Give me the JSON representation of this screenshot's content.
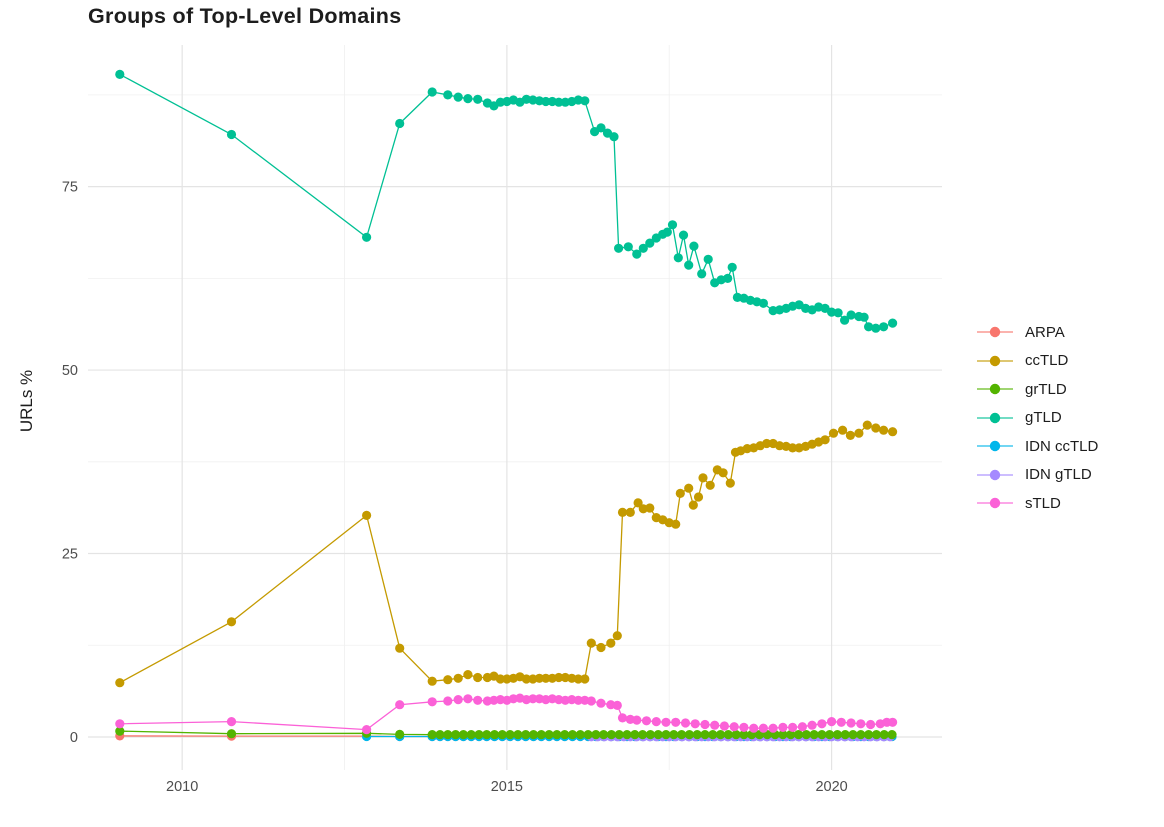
{
  "title": "Groups of Top-Level Domains",
  "ylabel": "URLs %",
  "axes": {
    "x": {
      "ticks": [
        2010,
        2015,
        2020
      ],
      "minor": [
        2012.5,
        2017.5
      ],
      "lim": [
        2008.55,
        2021.7
      ]
    },
    "y": {
      "ticks": [
        0,
        25,
        50,
        75
      ],
      "minor": [
        12.5,
        37.5,
        62.5,
        87.5
      ],
      "lim": [
        -4.5,
        94.3
      ]
    }
  },
  "grid_color_major": "#e4e4e4",
  "grid_color_minor": "#f0f0f0",
  "tick_label_color": "#4d4d4d",
  "legend": {
    "position": "right",
    "items": [
      {
        "label": "ARPA",
        "color": "#F8766D"
      },
      {
        "label": "ccTLD",
        "color": "#C49A00"
      },
      {
        "label": "grTLD",
        "color": "#53B400"
      },
      {
        "label": "gTLD",
        "color": "#00C094"
      },
      {
        "label": "IDN ccTLD",
        "color": "#00B6EB"
      },
      {
        "label": "IDN gTLD",
        "color": "#A58AFF"
      },
      {
        "label": "sTLD",
        "color": "#FB61D7"
      }
    ]
  },
  "chart_data": {
    "type": "line",
    "mark": "line+point",
    "title": "Groups of Top-Level Domains",
    "xlabel": "",
    "ylabel": "URLs %",
    "xlim": [
      2008.55,
      2021.7
    ],
    "ylim": [
      -4.5,
      94.3
    ],
    "grid": true,
    "legend_position": "right",
    "series": [
      {
        "name": "ARPA",
        "color": "#F8766D",
        "points": [
          [
            2009.04,
            0.15
          ],
          [
            2010.76,
            0.12
          ],
          [
            2012.84,
            0.12
          ],
          [
            2013.35,
            0.07
          ]
        ],
        "flat": {
          "from": 2013.85,
          "to": 2020.95,
          "step": 0.12,
          "value": 0.07
        }
      },
      {
        "name": "ccTLD",
        "color": "#C49A00",
        "points": [
          [
            2009.04,
            7.4
          ],
          [
            2010.76,
            15.7
          ],
          [
            2012.84,
            30.2
          ],
          [
            2013.35,
            12.1
          ],
          [
            2013.85,
            7.6
          ],
          [
            2014.09,
            7.8
          ],
          [
            2014.25,
            8.0
          ],
          [
            2014.4,
            8.5
          ],
          [
            2014.55,
            8.1
          ],
          [
            2014.7,
            8.1
          ],
          [
            2014.8,
            8.3
          ],
          [
            2014.9,
            7.9
          ],
          [
            2015.0,
            7.9
          ],
          [
            2015.1,
            8.0
          ],
          [
            2015.2,
            8.2
          ],
          [
            2015.3,
            7.9
          ],
          [
            2015.4,
            7.9
          ],
          [
            2015.5,
            8.0
          ],
          [
            2015.6,
            8.0
          ],
          [
            2015.7,
            8.0
          ],
          [
            2015.8,
            8.1
          ],
          [
            2015.9,
            8.1
          ],
          [
            2016.0,
            8.0
          ],
          [
            2016.1,
            7.9
          ],
          [
            2016.2,
            7.9
          ],
          [
            2016.3,
            12.8
          ],
          [
            2016.45,
            12.2
          ],
          [
            2016.6,
            12.8
          ],
          [
            2016.7,
            13.8
          ],
          [
            2016.78,
            30.6
          ],
          [
            2016.9,
            30.6
          ],
          [
            2017.02,
            31.9
          ],
          [
            2017.1,
            31.1
          ],
          [
            2017.2,
            31.2
          ],
          [
            2017.3,
            29.9
          ],
          [
            2017.4,
            29.6
          ],
          [
            2017.5,
            29.2
          ],
          [
            2017.6,
            29.0
          ],
          [
            2017.67,
            33.2
          ],
          [
            2017.8,
            33.9
          ],
          [
            2017.87,
            31.6
          ],
          [
            2017.95,
            32.7
          ],
          [
            2018.02,
            35.3
          ],
          [
            2018.13,
            34.3
          ],
          [
            2018.24,
            36.4
          ],
          [
            2018.33,
            36.0
          ],
          [
            2018.44,
            34.6
          ],
          [
            2018.52,
            38.8
          ],
          [
            2018.6,
            39.0
          ],
          [
            2018.7,
            39.3
          ],
          [
            2018.8,
            39.4
          ],
          [
            2018.9,
            39.7
          ],
          [
            2019.0,
            40.0
          ],
          [
            2019.1,
            40.0
          ],
          [
            2019.2,
            39.7
          ],
          [
            2019.3,
            39.6
          ],
          [
            2019.4,
            39.4
          ],
          [
            2019.5,
            39.4
          ],
          [
            2019.6,
            39.6
          ],
          [
            2019.7,
            39.9
          ],
          [
            2019.8,
            40.2
          ],
          [
            2019.9,
            40.5
          ],
          [
            2020.03,
            41.4
          ],
          [
            2020.17,
            41.8
          ],
          [
            2020.29,
            41.1
          ],
          [
            2020.42,
            41.4
          ],
          [
            2020.55,
            42.5
          ],
          [
            2020.68,
            42.1
          ],
          [
            2020.8,
            41.8
          ],
          [
            2020.94,
            41.6
          ]
        ]
      },
      {
        "name": "grTLD",
        "color": "#53B400",
        "points": [
          [
            2009.04,
            0.8
          ],
          [
            2010.76,
            0.45
          ],
          [
            2012.84,
            0.5
          ],
          [
            2013.35,
            0.35
          ]
        ],
        "flat": {
          "from": 2013.85,
          "to": 2020.95,
          "step": 0.12,
          "value": 0.33
        }
      },
      {
        "name": "gTLD",
        "color": "#00C094",
        "points": [
          [
            2009.04,
            90.3
          ],
          [
            2010.76,
            82.1
          ],
          [
            2012.84,
            68.1
          ],
          [
            2013.35,
            83.6
          ],
          [
            2013.85,
            87.9
          ],
          [
            2014.09,
            87.5
          ],
          [
            2014.25,
            87.2
          ],
          [
            2014.4,
            87.0
          ],
          [
            2014.55,
            86.9
          ],
          [
            2014.7,
            86.4
          ],
          [
            2014.8,
            86.0
          ],
          [
            2014.9,
            86.5
          ],
          [
            2015.0,
            86.6
          ],
          [
            2015.1,
            86.8
          ],
          [
            2015.2,
            86.5
          ],
          [
            2015.3,
            86.9
          ],
          [
            2015.4,
            86.8
          ],
          [
            2015.5,
            86.7
          ],
          [
            2015.6,
            86.6
          ],
          [
            2015.7,
            86.6
          ],
          [
            2015.8,
            86.5
          ],
          [
            2015.9,
            86.5
          ],
          [
            2016.0,
            86.6
          ],
          [
            2016.1,
            86.8
          ],
          [
            2016.2,
            86.7
          ],
          [
            2016.35,
            82.5
          ],
          [
            2016.45,
            83.0
          ],
          [
            2016.55,
            82.3
          ],
          [
            2016.65,
            81.8
          ],
          [
            2016.72,
            66.6
          ],
          [
            2016.87,
            66.8
          ],
          [
            2017.0,
            65.8
          ],
          [
            2017.1,
            66.6
          ],
          [
            2017.2,
            67.3
          ],
          [
            2017.3,
            68.0
          ],
          [
            2017.4,
            68.5
          ],
          [
            2017.47,
            68.8
          ],
          [
            2017.55,
            69.8
          ],
          [
            2017.64,
            65.3
          ],
          [
            2017.72,
            68.4
          ],
          [
            2017.8,
            64.3
          ],
          [
            2017.88,
            66.9
          ],
          [
            2018.0,
            63.1
          ],
          [
            2018.1,
            65.1
          ],
          [
            2018.2,
            61.9
          ],
          [
            2018.3,
            62.3
          ],
          [
            2018.4,
            62.5
          ],
          [
            2018.47,
            64.0
          ],
          [
            2018.55,
            59.9
          ],
          [
            2018.65,
            59.8
          ],
          [
            2018.75,
            59.5
          ],
          [
            2018.85,
            59.3
          ],
          [
            2018.95,
            59.1
          ],
          [
            2019.1,
            58.1
          ],
          [
            2019.2,
            58.2
          ],
          [
            2019.3,
            58.4
          ],
          [
            2019.4,
            58.7
          ],
          [
            2019.5,
            58.9
          ],
          [
            2019.6,
            58.4
          ],
          [
            2019.7,
            58.2
          ],
          [
            2019.8,
            58.6
          ],
          [
            2019.9,
            58.4
          ],
          [
            2020.0,
            57.9
          ],
          [
            2020.1,
            57.8
          ],
          [
            2020.2,
            56.8
          ],
          [
            2020.3,
            57.5
          ],
          [
            2020.42,
            57.3
          ],
          [
            2020.5,
            57.2
          ],
          [
            2020.57,
            55.9
          ],
          [
            2020.68,
            55.7
          ],
          [
            2020.8,
            55.9
          ],
          [
            2020.94,
            56.4
          ]
        ]
      },
      {
        "name": "IDN ccTLD",
        "color": "#00B6EB",
        "points": [
          [
            2012.84,
            0.07
          ],
          [
            2013.35,
            0.07
          ]
        ],
        "flat": {
          "from": 2013.85,
          "to": 2020.95,
          "step": 0.12,
          "value": 0.07
        }
      },
      {
        "name": "IDN gTLD",
        "color": "#A58AFF",
        "points": [],
        "flat": {
          "from": 2016.3,
          "to": 2020.95,
          "step": 0.1,
          "value": 0.02
        }
      },
      {
        "name": "sTLD",
        "color": "#FB61D7",
        "points": [
          [
            2009.04,
            1.8
          ],
          [
            2010.76,
            2.1
          ],
          [
            2012.84,
            1.0
          ],
          [
            2013.35,
            4.4
          ],
          [
            2013.85,
            4.8
          ],
          [
            2014.09,
            4.9
          ],
          [
            2014.25,
            5.1
          ],
          [
            2014.4,
            5.2
          ],
          [
            2014.55,
            5.0
          ],
          [
            2014.7,
            4.9
          ],
          [
            2014.8,
            5.0
          ],
          [
            2014.9,
            5.1
          ],
          [
            2015.0,
            5.0
          ],
          [
            2015.1,
            5.2
          ],
          [
            2015.2,
            5.3
          ],
          [
            2015.3,
            5.1
          ],
          [
            2015.4,
            5.2
          ],
          [
            2015.5,
            5.2
          ],
          [
            2015.6,
            5.1
          ],
          [
            2015.7,
            5.2
          ],
          [
            2015.8,
            5.1
          ],
          [
            2015.9,
            5.0
          ],
          [
            2016.0,
            5.1
          ],
          [
            2016.1,
            5.0
          ],
          [
            2016.2,
            5.0
          ],
          [
            2016.3,
            4.9
          ],
          [
            2016.45,
            4.6
          ],
          [
            2016.6,
            4.4
          ],
          [
            2016.7,
            4.3
          ],
          [
            2016.78,
            2.6
          ],
          [
            2016.9,
            2.4
          ],
          [
            2017.0,
            2.3
          ],
          [
            2017.15,
            2.2
          ],
          [
            2017.3,
            2.1
          ],
          [
            2017.45,
            2.0
          ],
          [
            2017.6,
            2.0
          ],
          [
            2017.75,
            1.9
          ],
          [
            2017.9,
            1.8
          ],
          [
            2018.05,
            1.7
          ],
          [
            2018.2,
            1.6
          ],
          [
            2018.35,
            1.5
          ],
          [
            2018.5,
            1.4
          ],
          [
            2018.65,
            1.3
          ],
          [
            2018.8,
            1.2
          ],
          [
            2018.95,
            1.2
          ],
          [
            2019.1,
            1.2
          ],
          [
            2019.25,
            1.3
          ],
          [
            2019.4,
            1.3
          ],
          [
            2019.55,
            1.4
          ],
          [
            2019.7,
            1.6
          ],
          [
            2019.85,
            1.8
          ],
          [
            2020.0,
            2.1
          ],
          [
            2020.15,
            2.0
          ],
          [
            2020.3,
            1.9
          ],
          [
            2020.45,
            1.8
          ],
          [
            2020.6,
            1.7
          ],
          [
            2020.75,
            1.8
          ],
          [
            2020.85,
            2.0
          ],
          [
            2020.94,
            2.0
          ]
        ]
      }
    ]
  }
}
